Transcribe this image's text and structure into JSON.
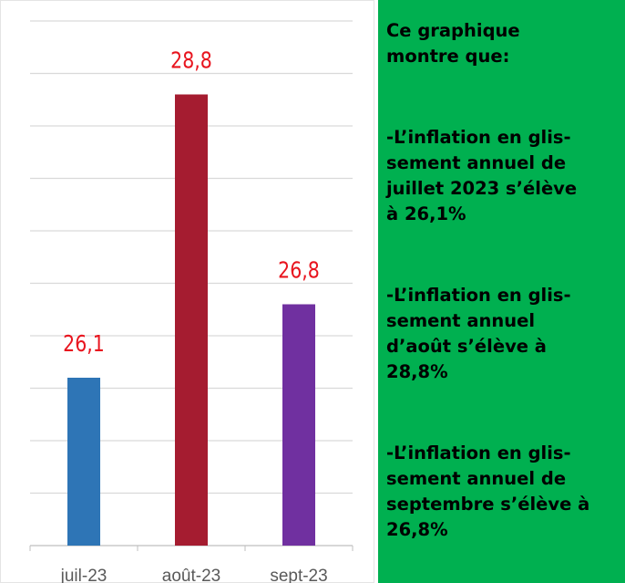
{
  "chart_data": {
    "type": "bar",
    "categories": [
      "juil-23",
      "août-23",
      "sept-23"
    ],
    "values": [
      26.1,
      28.8,
      26.8
    ],
    "value_labels": [
      "26,1",
      "28,8",
      "26,8"
    ],
    "colors": [
      "#2e75b6",
      "#a51c30",
      "#7030a0"
    ],
    "label_color": "#e8141e",
    "ylim": [
      24.5,
      29.7
    ],
    "yticks": [
      25,
      25.5,
      26,
      26.5,
      27,
      27.5,
      28,
      28.5,
      29,
      29.5
    ],
    "grid": true
  },
  "panel": {
    "paragraphs": [
      [
        "Ce graphique",
        "montre que:"
      ],
      [
        "-L’inflation en glis-",
        "sement annuel de",
        "juillet 2023 s’élève",
        "à 26,1%"
      ],
      [
        "-L’inflation en glis-",
        "sement annuel",
        "d’août s’élève à",
        "28,8%"
      ],
      [
        "-L’inflation en glis-",
        "sement annuel de",
        "septembre s’élève à",
        "26,8%"
      ]
    ]
  }
}
